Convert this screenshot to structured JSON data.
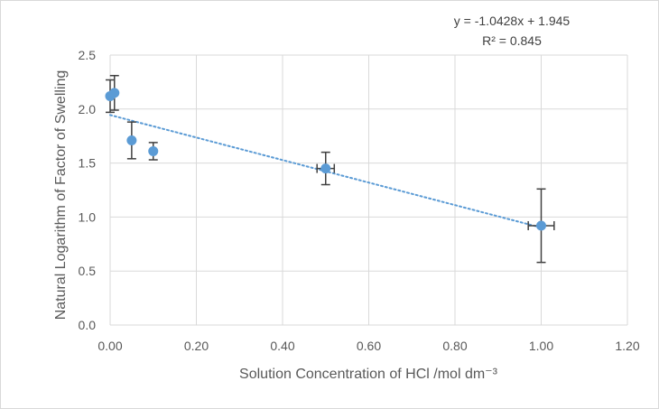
{
  "chart_data": {
    "type": "scatter",
    "xlabel": "Solution Concentration of HCl /mol dm⁻³",
    "ylabel": "Natural Logarithm of Factor of Swelling",
    "xlim": [
      0,
      1.2
    ],
    "ylim": [
      0,
      2.5
    ],
    "x_ticks": [
      "0.00",
      "0.20",
      "0.40",
      "0.60",
      "0.80",
      "1.00",
      "1.20"
    ],
    "y_ticks": [
      "0.0",
      "0.5",
      "1.0",
      "1.5",
      "2.0",
      "2.5"
    ],
    "grid": true,
    "marker_color": "#5b9bd5",
    "errorbar_color": "#404040",
    "points": [
      {
        "x": 0.0,
        "y": 2.12,
        "y_err": 0.15,
        "x_err": 0.0
      },
      {
        "x": 0.01,
        "y": 2.15,
        "y_err": 0.16,
        "x_err": 0.0
      },
      {
        "x": 0.05,
        "y": 1.71,
        "y_err": 0.17,
        "x_err": 0.0
      },
      {
        "x": 0.1,
        "y": 1.61,
        "y_err": 0.08,
        "x_err": 0.0
      },
      {
        "x": 0.5,
        "y": 1.45,
        "y_err": 0.15,
        "x_err": 0.02
      },
      {
        "x": 1.0,
        "y": 0.92,
        "y_err": 0.34,
        "x_err": 0.03
      }
    ],
    "trendline": {
      "slope": -1.0428,
      "intercept": 1.945,
      "x_range": [
        0,
        1.0
      ],
      "color": "#5b9bd5",
      "equation": "y = -1.0428x + 1.945",
      "r2": "R² = 0.845"
    }
  }
}
